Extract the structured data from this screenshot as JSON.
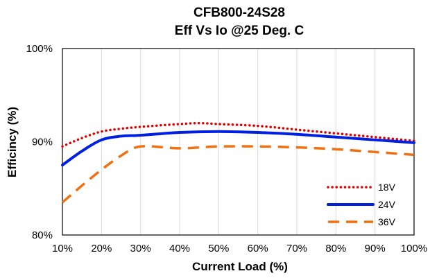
{
  "chart_data": {
    "type": "line",
    "title_lines": [
      "CFB800-24S28",
      "Eff Vs Io @25 Deg. C"
    ],
    "xlabel": "Current Load (%)",
    "ylabel": "Efficincy (%)",
    "x_ticks": [
      "10%",
      "20%",
      "30%",
      "40%",
      "50%",
      "60%",
      "70%",
      "80%",
      "90%",
      "100%"
    ],
    "y_ticks": [
      "80%",
      "90%",
      "100%"
    ],
    "xlim": [
      10,
      100
    ],
    "ylim": [
      80,
      100
    ],
    "grid": "vertical",
    "legend_position": "bottom-right",
    "series": [
      {
        "name": "18V",
        "color": "#e00000",
        "dash": "dotted",
        "x": [
          10,
          15,
          20,
          25,
          30,
          40,
          45,
          50,
          60,
          70,
          80,
          90,
          100
        ],
        "y": [
          89.5,
          90.4,
          91.1,
          91.4,
          91.6,
          91.9,
          92.0,
          91.9,
          91.7,
          91.3,
          90.9,
          90.5,
          90.1
        ]
      },
      {
        "name": "24V",
        "color": "#0020e0",
        "dash": "solid",
        "x": [
          10,
          15,
          20,
          25,
          30,
          40,
          50,
          60,
          70,
          80,
          90,
          100
        ],
        "y": [
          87.5,
          89.0,
          90.2,
          90.6,
          90.7,
          91.0,
          91.1,
          91.0,
          90.8,
          90.5,
          90.2,
          89.9
        ]
      },
      {
        "name": "36V",
        "color": "#f07010",
        "dash": "dashed",
        "x": [
          10,
          15,
          20,
          25,
          30,
          40,
          50,
          60,
          70,
          80,
          90,
          100
        ],
        "y": [
          83.5,
          85.3,
          87.0,
          88.5,
          89.5,
          89.3,
          89.5,
          89.5,
          89.4,
          89.2,
          88.9,
          88.6
        ]
      }
    ]
  }
}
